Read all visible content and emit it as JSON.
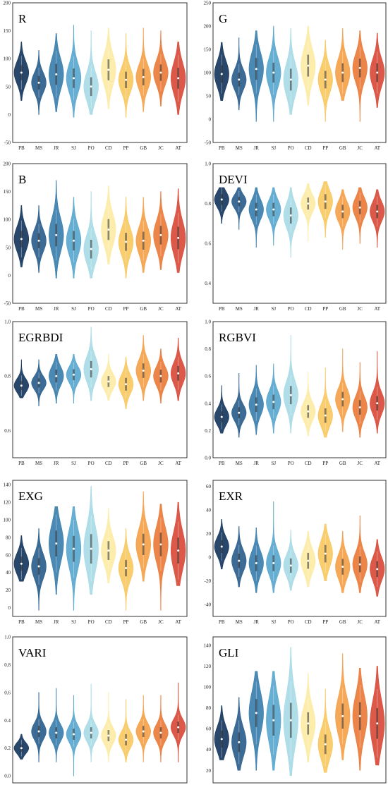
{
  "categories": [
    "PB",
    "MS",
    "JR",
    "SJ",
    "PO",
    "CD",
    "PP",
    "GB",
    "JC",
    "AT"
  ],
  "colors": [
    "#17375e",
    "#2b5f8c",
    "#3b7fac",
    "#5aa7cf",
    "#a8dbe6",
    "#fdeca6",
    "#f8c862",
    "#f4a14a",
    "#ea7b3a",
    "#d94b3a"
  ],
  "chart_data": [
    {
      "type": "violin",
      "title": "R",
      "ylim": [
        -50,
        200
      ],
      "yticks": [
        -50,
        0,
        50,
        100,
        150,
        200
      ],
      "medians": [
        75,
        57,
        72,
        65,
        50,
        80,
        62,
        67,
        75,
        65
      ],
      "spreads": [
        20,
        18,
        28,
        26,
        25,
        28,
        22,
        22,
        22,
        28
      ],
      "ranges": [
        [
          25,
          130
        ],
        [
          0,
          115
        ],
        [
          5,
          145
        ],
        [
          -5,
          160
        ],
        [
          0,
          150
        ],
        [
          10,
          155
        ],
        [
          -5,
          145
        ],
        [
          5,
          155
        ],
        [
          15,
          150
        ],
        [
          0,
          130
        ]
      ]
    },
    {
      "type": "violin",
      "title": "G",
      "ylim": [
        -50,
        250
      ],
      "yticks": [
        -50,
        0,
        50,
        100,
        150,
        200,
        250
      ],
      "medians": [
        97,
        85,
        108,
        100,
        85,
        115,
        85,
        100,
        110,
        100
      ],
      "spreads": [
        28,
        22,
        35,
        32,
        35,
        35,
        28,
        30,
        30,
        30
      ],
      "ranges": [
        [
          40,
          165
        ],
        [
          20,
          175
        ],
        [
          -5,
          190
        ],
        [
          -5,
          200
        ],
        [
          10,
          195
        ],
        [
          30,
          200
        ],
        [
          -5,
          170
        ],
        [
          40,
          195
        ],
        [
          -5,
          190
        ],
        [
          25,
          185
        ]
      ]
    },
    {
      "type": "violin",
      "title": "B",
      "ylim": [
        -50,
        200
      ],
      "yticks": [
        -50,
        0,
        50,
        100,
        150,
        200
      ],
      "medians": [
        65,
        62,
        72,
        62,
        47,
        82,
        60,
        62,
        72,
        67
      ],
      "spreads": [
        22,
        20,
        30,
        26,
        25,
        28,
        24,
        24,
        25,
        30
      ],
      "ranges": [
        [
          15,
          125
        ],
        [
          5,
          125
        ],
        [
          -5,
          170
        ],
        [
          -5,
          140
        ],
        [
          -5,
          150
        ],
        [
          20,
          160
        ],
        [
          -5,
          140
        ],
        [
          5,
          140
        ],
        [
          10,
          150
        ],
        [
          5,
          155
        ]
      ]
    },
    {
      "type": "violin",
      "title": "DEVI",
      "ylim": [
        0.3,
        1.0
      ],
      "yticks": [
        0.4,
        0.6,
        0.8,
        1.0
      ],
      "medians": [
        0.82,
        0.81,
        0.77,
        0.77,
        0.74,
        0.8,
        0.81,
        0.76,
        0.78,
        0.76
      ],
      "spreads": [
        0.04,
        0.035,
        0.05,
        0.05,
        0.06,
        0.045,
        0.055,
        0.05,
        0.05,
        0.05
      ],
      "ranges": [
        [
          0.7,
          0.88
        ],
        [
          0.67,
          0.88
        ],
        [
          0.58,
          0.88
        ],
        [
          0.59,
          0.88
        ],
        [
          0.53,
          0.88
        ],
        [
          0.61,
          0.9
        ],
        [
          0.63,
          0.91
        ],
        [
          0.57,
          0.87
        ],
        [
          0.6,
          0.88
        ],
        [
          0.58,
          0.87
        ]
      ]
    },
    {
      "type": "violin",
      "title": "EGRBDI",
      "ylim": [
        0.5,
        1.0
      ],
      "yticks": [
        0.6,
        0.8,
        1.0
      ],
      "medians": [
        0.765,
        0.775,
        0.8,
        0.805,
        0.825,
        0.78,
        0.77,
        0.82,
        0.8,
        0.81
      ],
      "spreads": [
        0.025,
        0.025,
        0.035,
        0.03,
        0.045,
        0.03,
        0.035,
        0.04,
        0.035,
        0.04
      ],
      "ranges": [
        [
          0.72,
          0.86
        ],
        [
          0.69,
          0.86
        ],
        [
          0.7,
          0.88
        ],
        [
          0.7,
          0.88
        ],
        [
          0.71,
          0.98
        ],
        [
          0.71,
          0.88
        ],
        [
          0.68,
          0.87
        ],
        [
          0.71,
          0.95
        ],
        [
          0.7,
          0.9
        ],
        [
          0.71,
          0.94
        ]
      ]
    },
    {
      "type": "violin",
      "title": "RGBVI",
      "ylim": [
        0.0,
        1.0
      ],
      "yticks": [
        0.0,
        0.2,
        0.4,
        0.6,
        0.8,
        1.0
      ],
      "medians": [
        0.3,
        0.33,
        0.39,
        0.41,
        0.46,
        0.34,
        0.31,
        0.43,
        0.37,
        0.4
      ],
      "spreads": [
        0.06,
        0.06,
        0.08,
        0.08,
        0.1,
        0.07,
        0.08,
        0.08,
        0.08,
        0.08
      ],
      "ranges": [
        [
          0.18,
          0.53
        ],
        [
          0.15,
          0.62
        ],
        [
          0.17,
          0.68
        ],
        [
          0.18,
          0.69
        ],
        [
          0.18,
          0.9
        ],
        [
          0.16,
          0.63
        ],
        [
          0.15,
          0.66
        ],
        [
          0.19,
          0.8
        ],
        [
          0.15,
          0.7
        ],
        [
          0.18,
          0.78
        ]
      ]
    },
    {
      "type": "violin",
      "title": "EXG",
      "ylim": [
        -10,
        145
      ],
      "yticks": [
        0,
        20,
        40,
        60,
        80,
        100,
        120,
        140
      ],
      "medians": [
        50,
        47,
        73,
        67,
        67,
        65,
        45,
        72,
        72,
        65
      ],
      "spreads": [
        12,
        14,
        22,
        22,
        25,
        16,
        14,
        18,
        20,
        22
      ],
      "ranges": [
        [
          30,
          82
        ],
        [
          -3,
          90
        ],
        [
          15,
          115
        ],
        [
          -3,
          115
        ],
        [
          15,
          138
        ],
        [
          28,
          113
        ],
        [
          -3,
          90
        ],
        [
          30,
          132
        ],
        [
          -3,
          118
        ],
        [
          25,
          120
        ]
      ]
    },
    {
      "type": "violin",
      "title": "EXR",
      "ylim": [
        -50,
        65
      ],
      "yticks": [
        -40,
        -20,
        0,
        20,
        40,
        60
      ],
      "medians": [
        9,
        -3,
        -5,
        -5,
        -7,
        -3,
        3,
        -8,
        -6,
        -10
      ],
      "spreads": [
        8,
        9,
        10,
        10,
        9,
        10,
        11,
        10,
        10,
        10
      ],
      "ranges": [
        [
          -10,
          32
        ],
        [
          -25,
          26
        ],
        [
          -30,
          25
        ],
        [
          -30,
          47
        ],
        [
          -28,
          23
        ],
        [
          -25,
          22
        ],
        [
          -20,
          28
        ],
        [
          -30,
          22
        ],
        [
          -30,
          35
        ],
        [
          -33,
          15
        ]
      ]
    },
    {
      "type": "violin",
      "title": "VARI",
      "ylim": [
        -0.05,
        1.0
      ],
      "yticks": [
        0.0,
        0.2,
        0.4,
        0.6,
        0.8,
        1.0
      ],
      "medians": [
        0.2,
        0.32,
        0.31,
        0.3,
        0.31,
        0.29,
        0.26,
        0.32,
        0.31,
        0.35
      ],
      "spreads": [
        0.04,
        0.06,
        0.06,
        0.06,
        0.06,
        0.06,
        0.06,
        0.06,
        0.06,
        0.06
      ],
      "ranges": [
        [
          0.12,
          0.3
        ],
        [
          0.1,
          0.6
        ],
        [
          0.1,
          0.63
        ],
        [
          0.0,
          0.58
        ],
        [
          0.1,
          0.66
        ],
        [
          0.1,
          0.6
        ],
        [
          0.1,
          0.55
        ],
        [
          0.1,
          0.58
        ],
        [
          0.1,
          0.58
        ],
        [
          0.1,
          0.67
        ]
      ]
    },
    {
      "type": "violin",
      "title": "GLI",
      "ylim": [
        8,
        148
      ],
      "yticks": [
        20,
        40,
        60,
        80,
        100,
        120,
        140
      ],
      "medians": [
        50,
        47,
        75,
        68,
        68,
        65,
        45,
        72,
        72,
        65
      ],
      "spreads": [
        12,
        14,
        20,
        22,
        25,
        16,
        14,
        18,
        20,
        22
      ],
      "ranges": [
        [
          30,
          82
        ],
        [
          20,
          90
        ],
        [
          20,
          115
        ],
        [
          20,
          115
        ],
        [
          15,
          138
        ],
        [
          28,
          113
        ],
        [
          18,
          98
        ],
        [
          30,
          132
        ],
        [
          20,
          118
        ],
        [
          25,
          120
        ]
      ]
    }
  ]
}
